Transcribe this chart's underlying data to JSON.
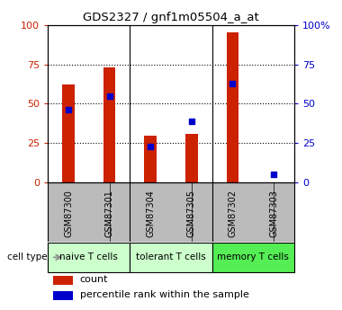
{
  "title": "GDS2327 / gnf1m05504_a_at",
  "samples": [
    "GSM87300",
    "GSM87301",
    "GSM87304",
    "GSM87305",
    "GSM87302",
    "GSM87303"
  ],
  "count_values": [
    62,
    73,
    30,
    31,
    95,
    0
  ],
  "percentile_values": [
    46,
    55,
    23,
    39,
    63,
    5
  ],
  "bar_color": "#cc2200",
  "dot_color": "#0000cc",
  "ylim": [
    0,
    100
  ],
  "yticks": [
    0,
    25,
    50,
    75,
    100
  ],
  "yticklabels_right": [
    "0",
    "25",
    "50",
    "75",
    "100%"
  ],
  "yticklabels_left": [
    "0",
    "25",
    "50",
    "75",
    "100"
  ],
  "cell_type_label": "cell type",
  "legend_count_label": "count",
  "legend_percentile_label": "percentile rank within the sample",
  "bg_color": "#ffffff",
  "tick_label_area_color": "#bbbbbb",
  "naive_color": "#ccffcc",
  "tolerant_color": "#ccffcc",
  "memory_color": "#55ee55",
  "group_labels": [
    "naive T cells",
    "tolerant T cells",
    "memory T cells"
  ],
  "group_starts": [
    0,
    2,
    4
  ],
  "group_ends": [
    1,
    3,
    5
  ]
}
